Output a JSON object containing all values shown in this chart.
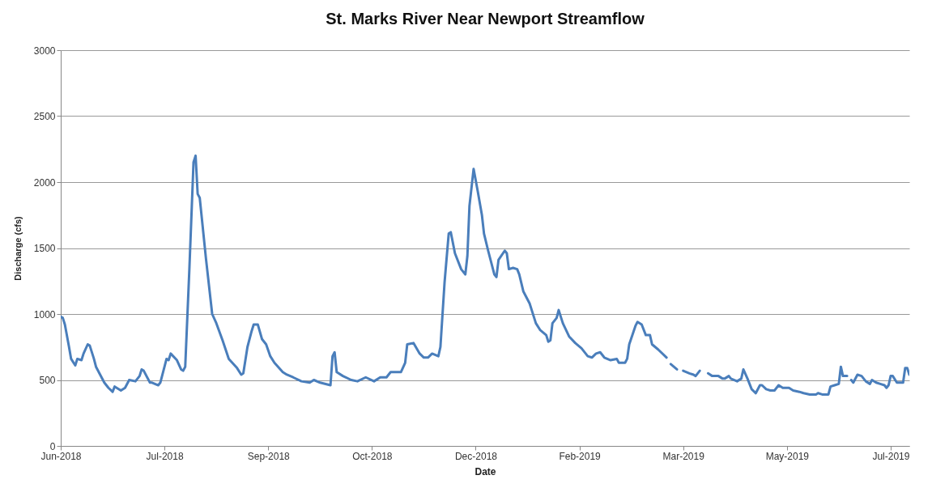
{
  "chart_data": {
    "type": "line",
    "title": "St. Marks River Near Newport Streamflow",
    "xlabel": "Date",
    "ylabel": "Discharge (cfs)",
    "x": [
      "2018-06-01",
      "2018-06-02",
      "2018-06-03",
      "2018-06-05",
      "2018-06-06",
      "2018-06-08",
      "2018-06-09",
      "2018-06-11",
      "2018-06-12",
      "2018-06-14",
      "2018-06-15",
      "2018-06-17",
      "2018-06-18",
      "2018-06-20",
      "2018-06-22",
      "2018-06-24",
      "2018-06-26",
      "2018-06-27",
      "2018-06-30",
      "2018-07-02",
      "2018-07-04",
      "2018-07-07",
      "2018-07-09",
      "2018-07-10",
      "2018-07-11",
      "2018-07-14",
      "2018-07-15",
      "2018-07-18",
      "2018-07-19",
      "2018-07-22",
      "2018-07-23",
      "2018-07-24",
      "2018-07-27",
      "2018-07-29",
      "2018-07-30",
      "2018-07-31",
      "2018-08-02",
      "2018-08-04",
      "2018-08-05",
      "2018-08-06",
      "2018-08-07",
      "2018-08-10",
      "2018-08-13",
      "2018-08-15",
      "2018-08-18",
      "2018-08-21",
      "2018-08-25",
      "2018-08-27",
      "2018-08-28",
      "2018-08-30",
      "2018-09-01",
      "2018-09-02",
      "2018-09-04",
      "2018-09-06",
      "2018-09-08",
      "2018-09-10",
      "2018-09-12",
      "2018-09-16",
      "2018-09-18",
      "2018-09-21",
      "2018-09-25",
      "2018-09-29",
      "2018-10-01",
      "2018-10-04",
      "2018-10-09",
      "2018-10-10",
      "2018-10-11",
      "2018-10-12",
      "2018-10-15",
      "2018-10-19",
      "2018-10-22",
      "2018-10-26",
      "2018-10-30",
      "2018-11-02",
      "2018-11-05",
      "2018-11-07",
      "2018-11-12",
      "2018-11-14",
      "2018-11-15",
      "2018-11-18",
      "2018-11-21",
      "2018-11-23",
      "2018-11-25",
      "2018-11-27",
      "2018-11-30",
      "2018-12-01",
      "2018-12-03",
      "2018-12-05",
      "2018-12-06",
      "2018-12-08",
      "2018-12-11",
      "2018-12-13",
      "2018-12-14",
      "2018-12-15",
      "2018-12-17",
      "2018-12-19",
      "2018-12-21",
      "2018-12-22",
      "2018-12-24",
      "2018-12-27",
      "2018-12-28",
      "2018-12-29",
      "2019-01-01",
      "2019-01-02",
      "2019-01-03",
      "2019-01-05",
      "2019-01-07",
      "2019-01-08",
      "2019-01-10",
      "2019-01-13",
      "2019-01-14",
      "2019-01-16",
      "2019-01-18",
      "2019-01-21",
      "2019-01-22",
      "2019-01-23",
      "2019-01-24",
      "2019-01-26",
      "2019-01-27",
      "2019-01-29",
      "2019-02-01",
      "2019-02-04",
      "2019-02-07",
      "2019-02-10",
      "2019-02-12",
      "2019-02-14",
      "2019-02-16",
      "2019-02-18",
      "2019-02-21",
      "2019-02-24",
      "2019-02-25",
      "2019-02-28",
      "2019-03-01",
      "2019-03-02",
      "2019-03-05",
      "2019-03-06",
      "2019-03-08",
      "2019-03-10",
      "2019-03-12",
      "2019-03-13",
      "2019-03-16",
      "2019-03-20",
      "2019-03-21",
      "2019-03-22",
      "2019-03-25",
      "2019-03-26",
      "2019-03-28",
      "2019-03-31",
      "2019-04-02",
      "2019-04-03",
      "2019-04-05",
      "2019-04-07",
      "2019-04-09",
      "2019-04-11",
      "2019-04-14",
      "2019-04-16",
      "2019-04-17",
      "2019-04-19",
      "2019-04-20",
      "2019-04-23",
      "2019-04-25",
      "2019-04-26",
      "2019-04-28",
      "2019-04-30",
      "2019-05-02",
      "2019-05-04",
      "2019-05-05",
      "2019-05-07",
      "2019-05-09",
      "2019-05-11",
      "2019-05-13",
      "2019-05-15",
      "2019-05-18",
      "2019-05-20",
      "2019-05-23",
      "2019-05-25",
      "2019-05-28",
      "2019-05-31",
      "2019-06-01",
      "2019-06-03",
      "2019-06-06",
      "2019-06-07",
      "2019-06-09",
      "2019-06-11",
      "2019-06-12",
      "2019-06-13",
      "2019-06-15",
      "2019-06-16",
      "2019-06-17",
      "2019-06-18",
      "2019-06-20",
      "2019-06-22",
      "2019-06-24",
      "2019-06-26",
      "2019-06-27",
      "2019-06-29",
      "2019-07-01",
      "2019-07-03",
      "2019-07-04",
      "2019-07-05",
      "2019-07-06",
      "2019-07-07",
      "2019-07-09",
      "2019-07-11",
      "2019-07-12",
      "2019-07-13",
      "2019-07-14",
      "2019-07-15"
    ],
    "series": [
      {
        "color": "#4a7ebb",
        "values": [
          980,
          970,
          920,
          750,
          660,
          610,
          660,
          650,
          700,
          770,
          760,
          660,
          600,
          540,
          480,
          440,
          410,
          450,
          420,
          440,
          500,
          490,
          530,
          580,
          570,
          480,
          480,
          460,
          480,
          660,
          650,
          700,
          650,
          580,
          570,
          600,
          1340,
          2150,
          2200,
          1910,
          1880,
          1420,
          1000,
          930,
          800,
          660,
          590,
          540,
          550,
          750,
          870,
          920,
          920,
          810,
          770,
          680,
          630,
          560,
          540,
          520,
          490,
          480,
          500,
          480,
          460,
          680,
          710,
          560,
          530,
          500,
          490,
          520,
          490,
          520,
          520,
          560,
          560,
          630,
          770,
          780,
          700,
          670,
          670,
          700,
          680,
          750,
          1240,
          1610,
          1620,
          1460,
          1340,
          1300,
          1440,
          1820,
          2100,
          1930,
          1750,
          1610,
          1480,
          1300,
          1280,
          1410,
          1480,
          1460,
          1340,
          1350,
          1340,
          1300,
          1170,
          1080,
          1030,
          930,
          880,
          840,
          790,
          800,
          930,
          970,
          1030,
          930,
          830,
          780,
          740,
          680,
          670,
          700,
          710,
          670,
          650,
          660,
          630,
          630,
          660,
          770,
          910,
          940,
          920,
          840,
          840,
          770,
          730,
          670,
          null,
          620,
          580,
          null,
          570,
          550,
          540,
          530,
          570,
          null,
          550,
          530,
          530,
          510,
          510,
          530,
          510,
          490,
          510,
          580,
          510,
          430,
          400,
          460,
          460,
          430,
          420,
          420,
          460,
          440,
          440,
          420,
          410,
          400,
          390,
          390,
          400,
          390,
          390,
          450,
          460,
          470,
          600,
          530,
          530,
          null,
          500,
          480,
          540,
          530,
          490,
          470,
          500,
          480,
          470,
          460,
          440,
          460,
          530,
          530,
          480,
          480,
          480,
          590,
          590,
          540
        ]
      }
    ],
    "xlim": [
      "2018-06-01",
      "2019-07-15"
    ],
    "xticks": [
      {
        "value": "2018-06-01",
        "label": "Jun-2018"
      },
      {
        "value": "2018-07-21",
        "label": "Jul-2018"
      },
      {
        "value": "2018-09-09",
        "label": "Sep-2018"
      },
      {
        "value": "2018-10-29",
        "label": "Oct-2018"
      },
      {
        "value": "2018-12-18",
        "label": "Dec-2018"
      },
      {
        "value": "2019-02-06",
        "label": "Feb-2019"
      },
      {
        "value": "2019-03-28",
        "label": "Mar-2019"
      },
      {
        "value": "2019-05-17",
        "label": "May-2019"
      },
      {
        "value": "2019-07-06",
        "label": "Jul-2019"
      }
    ],
    "ylim": [
      0,
      3000
    ],
    "yticks": [
      0,
      500,
      1000,
      1500,
      2000,
      2500,
      3000
    ],
    "grid": "y"
  }
}
